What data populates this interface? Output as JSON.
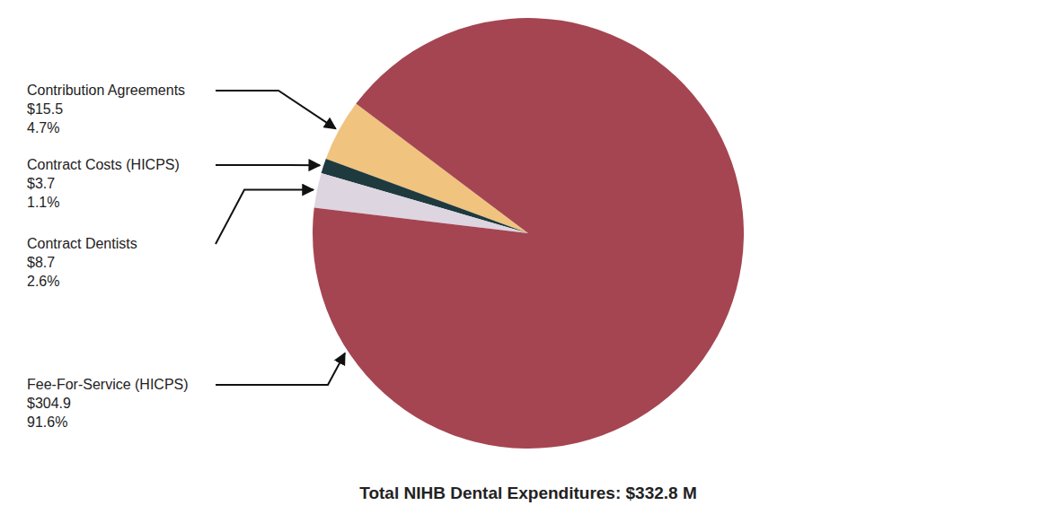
{
  "chart_data": {
    "type": "pie",
    "title": "Total NIHB Dental Expenditures: $332.8 M",
    "categories": [
      "Contribution Agreements",
      "Contract Costs (HICPS)",
      "Contract Dentists",
      "Fee-For-Service (HICPS)"
    ],
    "values": [
      15.5,
      3.7,
      8.7,
      304.9
    ],
    "value_labels": [
      "$15.5",
      "$3.7",
      "$8.7",
      "$304.9"
    ],
    "percentages": [
      4.7,
      1.1,
      2.6,
      91.6
    ],
    "percentage_labels": [
      "4.7%",
      "1.1%",
      "2.6%",
      "91.6%"
    ],
    "colors": [
      "#f0c37f",
      "#1e3a3e",
      "#ddd5e0",
      "#a54552"
    ],
    "data_labels": true
  }
}
